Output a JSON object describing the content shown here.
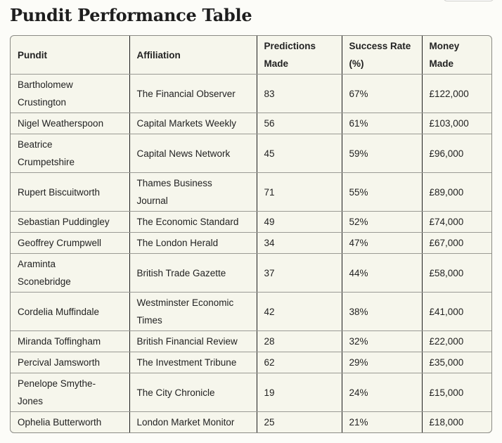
{
  "page": {
    "title": "Pundit Performance Table"
  },
  "table": {
    "columns": [
      "Pundit",
      "Affiliation",
      "Predictions\nMade",
      "Success Rate\n(%)",
      "Money\nMade"
    ],
    "rows": [
      [
        "Bartholomew\nCrustington",
        "The Financial Observer",
        "83",
        "67%",
        "£122,000"
      ],
      [
        "Nigel Weatherspoon",
        "Capital Markets Weekly",
        "56",
        "61%",
        "£103,000"
      ],
      [
        "Beatrice\nCrumpetshire",
        "Capital News Network",
        "45",
        "59%",
        "£96,000"
      ],
      [
        "Rupert Biscuitworth",
        "Thames Business\nJournal",
        "71",
        "55%",
        "£89,000"
      ],
      [
        "Sebastian Puddingley",
        "The Economic Standard",
        "49",
        "52%",
        "£74,000"
      ],
      [
        "Geoffrey Crumpwell",
        "The London Herald",
        "34",
        "47%",
        "£67,000"
      ],
      [
        "Araminta\nSconebridge",
        "British Trade Gazette",
        "37",
        "44%",
        "£58,000"
      ],
      [
        "Cordelia Muffindale",
        "Westminster Economic\nTimes",
        "42",
        "38%",
        "£41,000"
      ],
      [
        "Miranda Toffingham",
        "British Financial Review",
        "28",
        "32%",
        "£22,000"
      ],
      [
        "Percival Jamsworth",
        "The Investment Tribune",
        "62",
        "29%",
        "£35,000"
      ],
      [
        "Penelope Smythe-\nJones",
        "The City Chronicle",
        "19",
        "24%",
        "£15,000"
      ],
      [
        "Ophelia Butterworth",
        "London Market Monitor",
        "25",
        "21%",
        "£18,000"
      ]
    ]
  },
  "colors": {
    "page_bg": "#fcfcf8",
    "table_bg": "#f6f6ec",
    "outer_border": "#8b8b86",
    "row_border": "#9a9a94",
    "col_border": "#1c1c1c",
    "text": "#222222"
  }
}
